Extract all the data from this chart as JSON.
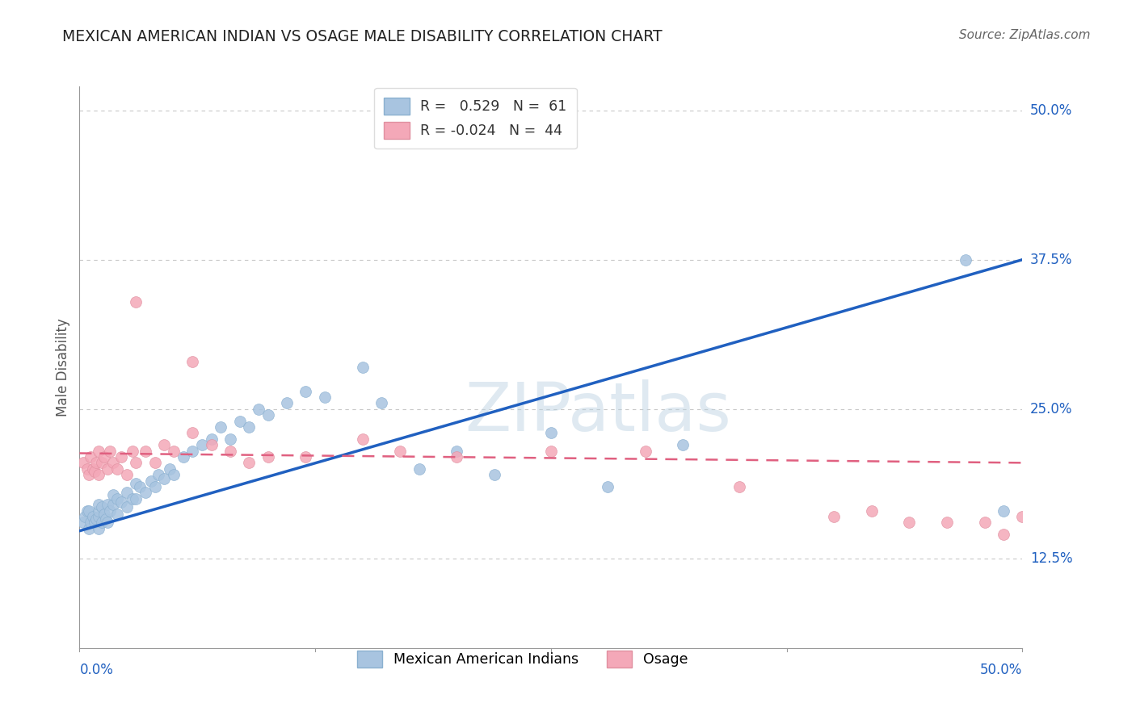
{
  "title": "MEXICAN AMERICAN INDIAN VS OSAGE MALE DISABILITY CORRELATION CHART",
  "source": "Source: ZipAtlas.com",
  "ylabel": "Male Disability",
  "watermark": "ZIPatlas",
  "xlim": [
    0.0,
    0.5
  ],
  "ylim": [
    0.05,
    0.52
  ],
  "ytick_labels": [
    "12.5%",
    "25.0%",
    "37.5%",
    "50.0%"
  ],
  "ytick_values": [
    0.125,
    0.25,
    0.375,
    0.5
  ],
  "xtick_labels": [
    "0.0%",
    "50.0%"
  ],
  "xtick_values": [
    0.0,
    0.5
  ],
  "legend_blue_r": " 0.529",
  "legend_blue_n": "61",
  "legend_pink_r": "-0.024",
  "legend_pink_n": "44",
  "blue_color": "#a8c4e0",
  "pink_color": "#f4a8b8",
  "blue_edge_color": "#8ab0d0",
  "pink_edge_color": "#e090a0",
  "line_blue_color": "#2060c0",
  "line_pink_color": "#e06080",
  "blue_scatter_x": [
    0.002,
    0.003,
    0.004,
    0.005,
    0.005,
    0.006,
    0.007,
    0.008,
    0.009,
    0.01,
    0.01,
    0.01,
    0.01,
    0.012,
    0.012,
    0.013,
    0.014,
    0.015,
    0.015,
    0.016,
    0.018,
    0.018,
    0.02,
    0.02,
    0.022,
    0.025,
    0.025,
    0.028,
    0.03,
    0.03,
    0.032,
    0.035,
    0.038,
    0.04,
    0.042,
    0.045,
    0.048,
    0.05,
    0.055,
    0.06,
    0.065,
    0.07,
    0.075,
    0.08,
    0.085,
    0.09,
    0.095,
    0.1,
    0.11,
    0.12,
    0.13,
    0.15,
    0.16,
    0.18,
    0.2,
    0.22,
    0.25,
    0.28,
    0.32,
    0.47,
    0.49
  ],
  "blue_scatter_y": [
    0.155,
    0.16,
    0.165,
    0.15,
    0.165,
    0.155,
    0.16,
    0.155,
    0.158,
    0.15,
    0.16,
    0.165,
    0.17,
    0.155,
    0.168,
    0.162,
    0.158,
    0.155,
    0.17,
    0.165,
    0.17,
    0.178,
    0.162,
    0.175,
    0.172,
    0.168,
    0.18,
    0.175,
    0.175,
    0.188,
    0.185,
    0.18,
    0.19,
    0.185,
    0.195,
    0.192,
    0.2,
    0.195,
    0.21,
    0.215,
    0.22,
    0.225,
    0.235,
    0.225,
    0.24,
    0.235,
    0.25,
    0.245,
    0.255,
    0.265,
    0.26,
    0.285,
    0.255,
    0.2,
    0.215,
    0.195,
    0.23,
    0.185,
    0.22,
    0.375,
    0.165
  ],
  "pink_scatter_x": [
    0.002,
    0.004,
    0.005,
    0.006,
    0.007,
    0.008,
    0.009,
    0.01,
    0.01,
    0.012,
    0.013,
    0.015,
    0.016,
    0.018,
    0.02,
    0.022,
    0.025,
    0.028,
    0.03,
    0.035,
    0.04,
    0.045,
    0.05,
    0.06,
    0.07,
    0.08,
    0.09,
    0.1,
    0.12,
    0.15,
    0.17,
    0.2,
    0.25,
    0.3,
    0.35,
    0.4,
    0.42,
    0.44,
    0.46,
    0.48,
    0.49,
    0.5,
    0.03,
    0.06
  ],
  "pink_scatter_y": [
    0.205,
    0.2,
    0.195,
    0.21,
    0.2,
    0.198,
    0.205,
    0.195,
    0.215,
    0.205,
    0.21,
    0.2,
    0.215,
    0.205,
    0.2,
    0.21,
    0.195,
    0.215,
    0.205,
    0.215,
    0.205,
    0.22,
    0.215,
    0.23,
    0.22,
    0.215,
    0.205,
    0.21,
    0.21,
    0.225,
    0.215,
    0.21,
    0.215,
    0.215,
    0.185,
    0.16,
    0.165,
    0.155,
    0.155,
    0.155,
    0.145,
    0.16,
    0.34,
    0.29
  ],
  "blue_line_x": [
    0.0,
    0.5
  ],
  "blue_line_y": [
    0.148,
    0.375
  ],
  "pink_line_x": [
    0.0,
    0.5
  ],
  "pink_line_y": [
    0.213,
    0.205
  ],
  "background_color": "#ffffff",
  "grid_color": "#c8c8c8",
  "axis_color": "#999999"
}
